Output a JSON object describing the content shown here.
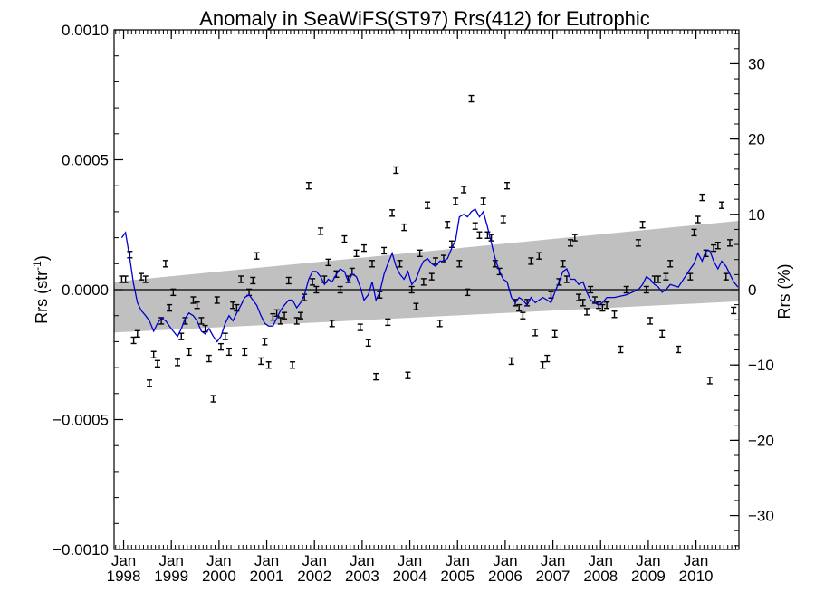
{
  "chart_data": {
    "type": "scatter",
    "title": "Anomaly in SeaWiFS(ST97) Rrs(412) for Eutrophic",
    "ylabel": "Rrs (str",
    "ylabel_sup": "-1",
    "ylabel_close": ")",
    "ylabel_right": "Rrs (%)",
    "xlim": [
      1997.8,
      2010.9
    ],
    "ylim": [
      -0.001,
      0.001
    ],
    "ylim_right": [
      -34.5,
      34.5
    ],
    "y_ticks": [
      {
        "value": 0.001,
        "label": "0.0010"
      },
      {
        "value": 0.0005,
        "label": "0.0005"
      },
      {
        "value": 0.0,
        "label": "0.0000"
      },
      {
        "value": -0.0005,
        "label": "−0.0005"
      },
      {
        "value": -0.001,
        "label": "−0.0010"
      }
    ],
    "y_right_ticks": [
      {
        "value": 30,
        "label": "30"
      },
      {
        "value": 20,
        "label": "20"
      },
      {
        "value": 10,
        "label": "10"
      },
      {
        "value": 0,
        "label": "0"
      },
      {
        "value": -10,
        "label": "−10"
      },
      {
        "value": -20,
        "label": "−20"
      },
      {
        "value": -30,
        "label": "−30"
      }
    ],
    "x_ticks": [
      {
        "value": 1998,
        "month": "Jan",
        "year": "1998"
      },
      {
        "value": 1999,
        "month": "Jan",
        "year": "1999"
      },
      {
        "value": 2000,
        "month": "Jan",
        "year": "2000"
      },
      {
        "value": 2001,
        "month": "Jan",
        "year": "2001"
      },
      {
        "value": 2002,
        "month": "Jan",
        "year": "2002"
      },
      {
        "value": 2003,
        "month": "Jan",
        "year": "2003"
      },
      {
        "value": 2004,
        "month": "Jan",
        "year": "2004"
      },
      {
        "value": 2005,
        "month": "Jan",
        "year": "2005"
      },
      {
        "value": 2006,
        "month": "Jan",
        "year": "2006"
      },
      {
        "value": 2007,
        "month": "Jan",
        "year": "2007"
      },
      {
        "value": 2008,
        "month": "Jan",
        "year": "2008"
      },
      {
        "value": 2009,
        "month": "Jan",
        "year": "2009"
      },
      {
        "value": 2010,
        "month": "Jan",
        "year": "2010"
      }
    ],
    "trend_band": {
      "x": [
        1997.8,
        2010.9
      ],
      "upper": [
        3e-05,
        0.000265
      ],
      "lower": [
        -0.000165,
        -4.5e-05
      ],
      "color": "#c0c0c0"
    },
    "zero_line": {
      "value": 0.0,
      "color": "#000000"
    },
    "series": [
      {
        "kind": "errorbar",
        "color": "#000000",
        "points": [
          [
            1997.96,
            4e-05
          ],
          [
            1998.04,
            4e-05
          ],
          [
            1998.13,
            0.000135
          ],
          [
            1998.21,
            -0.000195
          ],
          [
            1998.29,
            -0.00017
          ],
          [
            1998.37,
            5e-05
          ],
          [
            1998.46,
            4e-05
          ],
          [
            1998.54,
            -0.00036
          ],
          [
            1998.63,
            -0.00025
          ],
          [
            1998.71,
            -0.000285
          ],
          [
            1998.79,
            -0.00012
          ],
          [
            1998.88,
            0.0001
          ],
          [
            1998.96,
            -7e-05
          ],
          [
            1999.04,
            -1e-05
          ],
          [
            1999.13,
            -0.00028
          ],
          [
            1999.21,
            -0.00018
          ],
          [
            1999.29,
            -0.00012
          ],
          [
            1999.37,
            -0.00024
          ],
          [
            1999.46,
            -4e-05
          ],
          [
            1999.54,
            -6e-05
          ],
          [
            1999.63,
            -0.00012
          ],
          [
            1999.71,
            -0.00015
          ],
          [
            1999.79,
            -0.000265
          ],
          [
            1999.88,
            -0.00042
          ],
          [
            1999.96,
            -4e-05
          ],
          [
            2000.04,
            -0.00022
          ],
          [
            2000.13,
            -0.00018
          ],
          [
            2000.21,
            -0.00024
          ],
          [
            2000.29,
            -6e-05
          ],
          [
            2000.37,
            -7e-05
          ],
          [
            2000.46,
            4e-05
          ],
          [
            2000.54,
            -0.00024
          ],
          [
            2000.63,
            -1e-05
          ],
          [
            2000.71,
            3.5e-05
          ],
          [
            2000.79,
            0.00013
          ],
          [
            2000.88,
            -0.000275
          ],
          [
            2000.96,
            -0.0002
          ],
          [
            2001.04,
            -0.00029
          ],
          [
            2001.13,
            -0.000105
          ],
          [
            2001.21,
            -9e-05
          ],
          [
            2001.29,
            -0.00012
          ],
          [
            2001.37,
            -0.0001
          ],
          [
            2001.46,
            3.5e-05
          ],
          [
            2001.54,
            -0.00029
          ],
          [
            2001.63,
            -0.00012
          ],
          [
            2001.71,
            -0.0001
          ],
          [
            2001.79,
            -3e-05
          ],
          [
            2001.88,
            0.0004
          ],
          [
            2001.96,
            3e-05
          ],
          [
            2002.04,
            0.0
          ],
          [
            2002.13,
            0.000225
          ],
          [
            2002.21,
            4e-05
          ],
          [
            2002.29,
            0.000105
          ],
          [
            2002.37,
            -0.00013
          ],
          [
            2002.46,
            6e-05
          ],
          [
            2002.54,
            0.0
          ],
          [
            2002.63,
            0.000195
          ],
          [
            2002.71,
            4e-05
          ],
          [
            2002.79,
            7e-05
          ],
          [
            2002.88,
            0.00014
          ],
          [
            2002.96,
            -0.000145
          ],
          [
            2003.04,
            0.00016
          ],
          [
            2003.13,
            -0.000205
          ],
          [
            2003.21,
            0.0001
          ],
          [
            2003.29,
            -0.000335
          ],
          [
            2003.37,
            -2e-05
          ],
          [
            2003.46,
            0.00015
          ],
          [
            2003.54,
            -0.000125
          ],
          [
            2003.63,
            0.000295
          ],
          [
            2003.71,
            0.00046
          ],
          [
            2003.79,
            0.0001
          ],
          [
            2003.88,
            0.00024
          ],
          [
            2003.96,
            -0.00033
          ],
          [
            2004.04,
            0.0
          ],
          [
            2004.13,
            -6.5e-05
          ],
          [
            2004.21,
            0.00014
          ],
          [
            2004.29,
            3e-05
          ],
          [
            2004.37,
            0.000325
          ],
          [
            2004.46,
            5e-05
          ],
          [
            2004.54,
            0.00011
          ],
          [
            2004.63,
            -0.00013
          ],
          [
            2004.71,
            0.00012
          ],
          [
            2004.79,
            0.00025
          ],
          [
            2004.88,
            0.000175
          ],
          [
            2004.96,
            0.00034
          ],
          [
            2005.04,
            0.0001
          ],
          [
            2005.13,
            0.000385
          ],
          [
            2005.21,
            -1e-05
          ],
          [
            2005.29,
            0.000735
          ],
          [
            2005.37,
            0.000245
          ],
          [
            2005.46,
            0.00021
          ],
          [
            2005.54,
            0.00034
          ],
          [
            2005.63,
            0.00021
          ],
          [
            2005.71,
            0.0002
          ],
          [
            2005.79,
            0.0001
          ],
          [
            2005.88,
            7e-05
          ],
          [
            2005.96,
            0.00027
          ],
          [
            2006.04,
            0.0004
          ],
          [
            2006.13,
            -0.000275
          ],
          [
            2006.21,
            -5e-05
          ],
          [
            2006.29,
            -7e-05
          ],
          [
            2006.37,
            -0.0001
          ],
          [
            2006.46,
            -5e-05
          ],
          [
            2006.54,
            0.00011
          ],
          [
            2006.63,
            -0.000165
          ],
          [
            2006.71,
            0.00013
          ],
          [
            2006.79,
            -0.00029
          ],
          [
            2006.88,
            -0.000265
          ],
          [
            2006.96,
            -2e-05
          ],
          [
            2007.04,
            -0.00017
          ],
          [
            2007.13,
            3e-05
          ],
          [
            2007.21,
            0.0001
          ],
          [
            2007.29,
            4e-05
          ],
          [
            2007.37,
            0.00018
          ],
          [
            2007.46,
            0.0002
          ],
          [
            2007.54,
            -3e-05
          ],
          [
            2007.63,
            -5e-05
          ],
          [
            2007.71,
            -8.5e-05
          ],
          [
            2007.79,
            0.0
          ],
          [
            2007.88,
            -4e-05
          ],
          [
            2007.96,
            -6e-05
          ],
          [
            2008.04,
            -7e-05
          ],
          [
            2008.13,
            -6e-05
          ],
          [
            2008.29,
            -9.5e-05
          ],
          [
            2008.42,
            -0.00023
          ],
          [
            2008.54,
            0.0
          ],
          [
            2008.79,
            0.00018
          ],
          [
            2008.88,
            0.00025
          ],
          [
            2008.96,
            0.0
          ],
          [
            2009.04,
            -0.00012
          ],
          [
            2009.13,
            4e-05
          ],
          [
            2009.21,
            4e-05
          ],
          [
            2009.29,
            -0.00017
          ],
          [
            2009.37,
            5e-05
          ],
          [
            2009.46,
            0.0001
          ],
          [
            2009.63,
            -0.00023
          ],
          [
            2009.88,
            5e-05
          ],
          [
            2009.96,
            0.00022
          ],
          [
            2010.04,
            0.00027
          ],
          [
            2010.13,
            0.000355
          ],
          [
            2010.21,
            0.00014
          ],
          [
            2010.29,
            -0.00035
          ],
          [
            2010.37,
            0.00016
          ],
          [
            2010.46,
            0.00017
          ],
          [
            2010.54,
            0.000325
          ],
          [
            2010.63,
            5e-05
          ],
          [
            2010.71,
            0.00018
          ],
          [
            2010.79,
            -8e-05
          ]
        ]
      },
      {
        "kind": "line",
        "color": "#0000d0",
        "x": [
          1997.96,
          1998.04,
          1998.13,
          1998.21,
          1998.29,
          1998.37,
          1998.46,
          1998.54,
          1998.63,
          1998.71,
          1998.79,
          1998.88,
          1998.96,
          1999.04,
          1999.13,
          1999.21,
          1999.29,
          1999.37,
          1999.46,
          1999.54,
          1999.63,
          1999.71,
          1999.79,
          1999.88,
          1999.96,
          2000.04,
          2000.13,
          2000.21,
          2000.29,
          2000.37,
          2000.46,
          2000.54,
          2000.63,
          2000.71,
          2000.79,
          2000.88,
          2000.96,
          2001.04,
          2001.13,
          2001.21,
          2001.29,
          2001.37,
          2001.46,
          2001.54,
          2001.63,
          2001.71,
          2001.79,
          2001.88,
          2001.96,
          2002.04,
          2002.13,
          2002.21,
          2002.29,
          2002.37,
          2002.46,
          2002.54,
          2002.63,
          2002.71,
          2002.79,
          2002.88,
          2002.96,
          2003.04,
          2003.13,
          2003.21,
          2003.29,
          2003.37,
          2003.46,
          2003.54,
          2003.63,
          2003.71,
          2003.79,
          2003.88,
          2003.96,
          2004.04,
          2004.13,
          2004.21,
          2004.29,
          2004.37,
          2004.46,
          2004.54,
          2004.63,
          2004.71,
          2004.79,
          2004.88,
          2004.96,
          2005.04,
          2005.13,
          2005.21,
          2005.29,
          2005.37,
          2005.46,
          2005.54,
          2005.63,
          2005.71,
          2005.79,
          2005.88,
          2005.96,
          2006.04,
          2006.13,
          2006.21,
          2006.29,
          2006.37,
          2006.46,
          2006.54,
          2006.63,
          2006.71,
          2006.79,
          2006.88,
          2006.96,
          2007.04,
          2007.13,
          2007.21,
          2007.29,
          2007.37,
          2007.46,
          2007.54,
          2007.63,
          2007.71,
          2007.79,
          2007.88,
          2007.96,
          2008.04,
          2008.13,
          2008.29,
          2008.54,
          2008.79,
          2008.88,
          2008.96,
          2009.04,
          2009.13,
          2009.21,
          2009.29,
          2009.37,
          2009.46,
          2009.63,
          2009.88,
          2009.96,
          2010.04,
          2010.13,
          2010.21,
          2010.29,
          2010.37,
          2010.46,
          2010.54,
          2010.63,
          2010.71,
          2010.79,
          2010.88
        ],
        "y": [
          0.0002,
          0.00022,
          0.00012,
          2e-05,
          -5e-05,
          -8e-05,
          -0.0001,
          -0.00012,
          -0.00016,
          -0.00013,
          -0.00011,
          -0.00012,
          -0.00014,
          -0.00016,
          -0.00018,
          -0.00015,
          -0.00011,
          -9e-05,
          -0.0001,
          -0.00012,
          -0.00016,
          -0.00017,
          -0.00015,
          -0.00018,
          -0.0002,
          -0.00018,
          -0.00013,
          -0.0001,
          -0.00012,
          -9e-05,
          -6e-05,
          -3e-05,
          -2e-05,
          -4e-05,
          -6e-05,
          -0.0001,
          -0.00013,
          -0.00014,
          -0.00014,
          -0.00011,
          -8e-05,
          -6e-05,
          -4e-05,
          -4e-05,
          -7e-05,
          -5e-05,
          -2e-05,
          4e-05,
          7e-05,
          7e-05,
          5e-05,
          2e-05,
          4e-05,
          3e-05,
          6e-05,
          8e-05,
          7e-05,
          3e-05,
          6e-05,
          5e-05,
          1e-05,
          -4e-05,
          -2e-05,
          3e-05,
          -4e-05,
          -1e-05,
          6e-05,
          0.0001,
          0.00014,
          9e-05,
          6e-05,
          4e-05,
          7e-05,
          2e-05,
          4e-05,
          8e-05,
          0.00011,
          0.00012,
          0.0001,
          9e-05,
          0.00011,
          0.00011,
          0.00012,
          0.00016,
          0.00019,
          0.00028,
          0.00029,
          0.00028,
          0.0003,
          0.00031,
          0.00028,
          0.0003,
          0.00024,
          0.00018,
          0.00012,
          7e-05,
          4e-05,
          3e-05,
          -3e-05,
          -5e-05,
          -3e-05,
          -4e-05,
          -6e-05,
          -3e-05,
          -5e-05,
          -4e-05,
          -3e-05,
          -4e-05,
          -5e-05,
          -1e-05,
          3e-05,
          7e-05,
          8e-05,
          4e-05,
          4e-05,
          2e-05,
          3e-05,
          -1e-05,
          -4e-05,
          -5e-05,
          -6e-05,
          -5e-05,
          -3e-05,
          -3e-05,
          -2e-05,
          0.0,
          2e-05,
          5e-05,
          4e-05,
          2e-05,
          1e-05,
          -1e-05,
          0.0,
          2e-05,
          1e-05,
          8e-05,
          0.0001,
          0.00014,
          0.00011,
          0.00015,
          0.00015,
          0.00011,
          8e-05,
          0.00011,
          9e-05,
          6e-05,
          3e-05,
          1e-05
        ]
      }
    ]
  }
}
